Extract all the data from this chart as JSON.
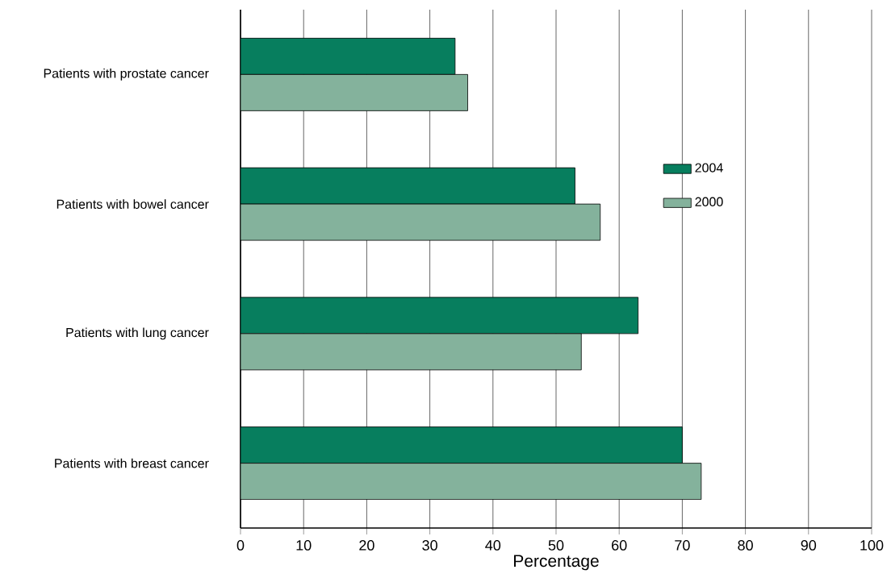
{
  "chart_data": {
    "type": "bar",
    "orientation": "horizontal",
    "xlabel": "Percentage",
    "categories": [
      "Patients with prostate cancer",
      "Patients with bowel cancer",
      "Patients with lung cancer",
      "Patients with breast cancer"
    ],
    "series": [
      {
        "name": "2004",
        "color": "#077e5e",
        "values": [
          34,
          53,
          63,
          70
        ]
      },
      {
        "name": "2000",
        "color": "#84b29c",
        "values": [
          36,
          57,
          54,
          73
        ]
      }
    ],
    "xlim": [
      0,
      100
    ],
    "xticks": [
      0,
      10,
      20,
      30,
      40,
      50,
      60,
      70,
      80,
      90,
      100
    ],
    "grid": "x",
    "legend": "right"
  }
}
